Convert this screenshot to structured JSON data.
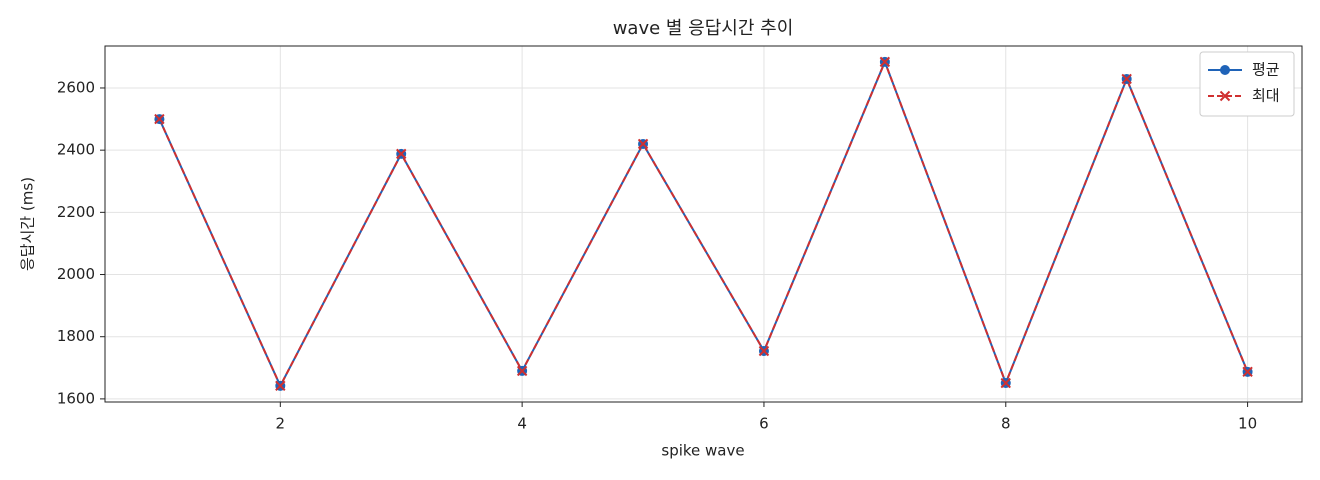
{
  "chart_data": {
    "type": "line",
    "title": "wave 별 응답시간 추이",
    "x_label": "spike wave",
    "y_label": "응답시간 (ms)",
    "x": [
      1,
      2,
      3,
      4,
      5,
      6,
      7,
      8,
      9,
      10
    ],
    "series": [
      {
        "name": "평균",
        "color": "#1f63b8",
        "values": [
          2500,
          1642,
          2388,
          1690,
          2420,
          1754,
          2684,
          1651,
          2629,
          1687
        ]
      },
      {
        "name": "최대",
        "color": "#d03030",
        "values": [
          2500,
          1642,
          2388,
          1690,
          2420,
          1754,
          2684,
          1651,
          2629,
          1687
        ]
      }
    ],
    "xlim": [
      0.55,
      10.45
    ],
    "xticks": [
      2,
      4,
      6,
      8,
      10
    ],
    "ylim": [
      1590,
      2735
    ],
    "yticks": [
      1600,
      1800,
      2000,
      2200,
      2400,
      2600
    ],
    "grid": true,
    "legend": "upper right"
  }
}
